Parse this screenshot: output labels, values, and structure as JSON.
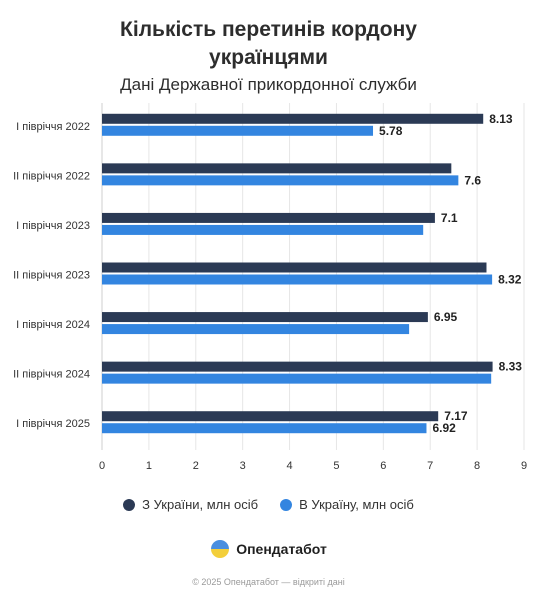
{
  "header": {
    "title_line1": "Кількість перетинів кордону",
    "title_line2": "українцями",
    "subtitle": "Дані Державної прикордонної служби"
  },
  "colors": {
    "series_out": "#2b3a55",
    "series_in": "#3385e0"
  },
  "chart_data": {
    "type": "bar",
    "orientation": "horizontal",
    "title": "Кількість перетинів кордону українцями",
    "subtitle": "Дані Державної прикордонної служби",
    "categories": [
      "I півріччя 2022",
      "II півріччя 2022",
      "I півріччя 2023",
      "II півріччя 2023",
      "I півріччя 2024",
      "II півріччя 2024",
      "I півріччя 2025"
    ],
    "series": [
      {
        "name": "З України, млн осіб",
        "values": [
          8.13,
          7.45,
          7.1,
          8.2,
          6.95,
          8.33,
          7.17
        ]
      },
      {
        "name": "В Україну, млн осіб",
        "values": [
          5.78,
          7.6,
          6.85,
          8.32,
          6.55,
          8.3,
          6.92
        ]
      }
    ],
    "data_labels": [
      [
        "8.13",
        "",
        "7.1",
        "",
        "6.95",
        "8.33",
        "7.17"
      ],
      [
        "5.78",
        "7.6",
        "",
        "8.32",
        "",
        "",
        "6.92"
      ]
    ],
    "xlim": [
      0,
      9
    ],
    "xticks": [
      "0",
      "1",
      "2",
      "3",
      "4",
      "5",
      "6",
      "7",
      "8",
      "9"
    ],
    "grid": true,
    "legend": "bottom"
  },
  "legend": [
    "З України, млн осіб",
    "В Україну, млн осіб"
  ],
  "brand": {
    "name": "Опендатабот"
  },
  "footer": "© 2025 Опендатабот — відкриті дані"
}
